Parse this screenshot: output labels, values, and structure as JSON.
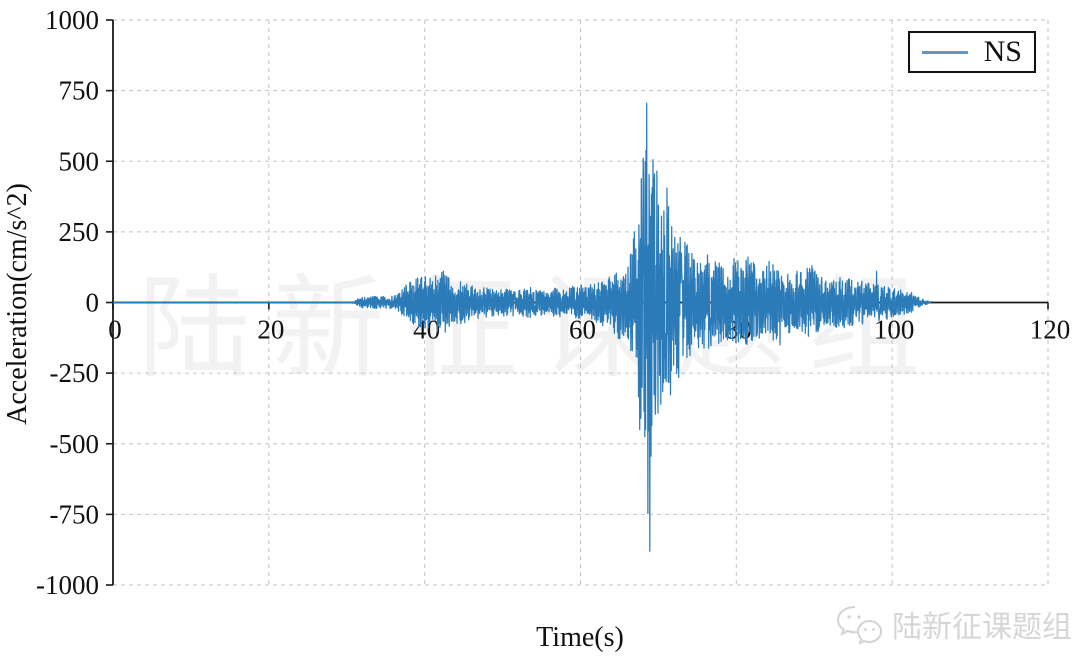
{
  "page": {
    "background": "#ffffff"
  },
  "chart_data": {
    "type": "line",
    "title": "",
    "xlabel": "Time(s)",
    "ylabel": "Acceleration(cm/s^2)",
    "xlim": [
      0,
      120
    ],
    "ylim": [
      -1000,
      1000
    ],
    "x_ticks": [
      0,
      20,
      40,
      60,
      80,
      100,
      120
    ],
    "x_tick_labels": [
      "0",
      "20",
      "40",
      "60",
      "80",
      "100",
      "120"
    ],
    "y_ticks": [
      1000,
      750,
      500,
      250,
      0,
      -250,
      -500,
      -750,
      -1000
    ],
    "y_tick_labels": [
      "1000",
      "750",
      "500",
      "250",
      "0",
      "-250",
      "-500",
      "-750",
      "-1000"
    ],
    "grid": "dashed",
    "grid_color": "#c3c3c3",
    "axis_color": "#1a1a1a",
    "legend": {
      "position": "top-right",
      "entries": [
        {
          "label": "NS",
          "color": "#5e96cb"
        }
      ]
    },
    "series": [
      {
        "name": "NS",
        "color": "#2b7bb9",
        "t_start": 0,
        "t_end": 105,
        "sample_dt": 0.05,
        "peak_positive": 705,
        "peak_positive_time": 68.5,
        "peak_negative": -880,
        "peak_negative_time": 68.9,
        "envelope_points": [
          [
            0,
            1
          ],
          [
            30.5,
            1
          ],
          [
            31,
            4
          ],
          [
            31.5,
            18
          ],
          [
            33,
            22
          ],
          [
            35,
            22
          ],
          [
            36.5,
            30
          ],
          [
            37.5,
            60
          ],
          [
            38.5,
            85
          ],
          [
            39.5,
            95
          ],
          [
            40.5,
            90
          ],
          [
            41.8,
            105
          ],
          [
            42.5,
            115
          ],
          [
            43.5,
            75
          ],
          [
            44.9,
            75
          ],
          [
            46,
            60
          ],
          [
            47.5,
            55
          ],
          [
            49,
            50
          ],
          [
            50.5,
            55
          ],
          [
            52,
            45
          ],
          [
            53.5,
            55
          ],
          [
            55,
            45
          ],
          [
            56.5,
            50
          ],
          [
            58,
            55
          ],
          [
            59.5,
            60
          ],
          [
            61,
            65
          ],
          [
            62,
            70
          ],
          [
            63,
            85
          ],
          [
            64,
            110
          ],
          [
            65,
            135
          ],
          [
            65.8,
            115
          ],
          [
            66.3,
            175
          ],
          [
            66.9,
            250
          ],
          [
            67.4,
            320
          ],
          [
            67.8,
            460
          ],
          [
            68.2,
            560
          ],
          [
            68.5,
            710
          ],
          [
            68.9,
            880
          ],
          [
            69.3,
            520
          ],
          [
            69.8,
            470
          ],
          [
            70.3,
            420
          ],
          [
            70.8,
            380
          ],
          [
            71.2,
            405
          ],
          [
            71.8,
            310
          ],
          [
            72.3,
            265
          ],
          [
            73,
            225
          ],
          [
            74,
            195
          ],
          [
            75,
            165
          ],
          [
            76.3,
            168
          ],
          [
            77.2,
            150
          ],
          [
            78.2,
            142
          ],
          [
            79.2,
            155
          ],
          [
            80.2,
            148
          ],
          [
            81.5,
            160
          ],
          [
            82.5,
            132
          ],
          [
            83.5,
            122
          ],
          [
            84.5,
            145
          ],
          [
            85.5,
            132
          ],
          [
            86.5,
            116
          ],
          [
            87.5,
            110
          ],
          [
            88.5,
            116
          ],
          [
            89.5,
            126
          ],
          [
            90.5,
            102
          ],
          [
            91.5,
            92
          ],
          [
            92.5,
            86
          ],
          [
            93.5,
            92
          ],
          [
            94.5,
            86
          ],
          [
            95.8,
            82
          ],
          [
            97,
            72
          ],
          [
            98,
            66
          ],
          [
            99,
            62
          ],
          [
            100,
            56
          ],
          [
            101,
            46
          ],
          [
            102,
            42
          ],
          [
            102.8,
            32
          ],
          [
            103.5,
            16
          ],
          [
            104.3,
            7
          ],
          [
            105,
            3
          ]
        ],
        "peak_events": [
          [
            66.9,
            250
          ],
          [
            67.6,
            -450
          ],
          [
            67.9,
            -300
          ],
          [
            68.5,
            705
          ],
          [
            68.9,
            -880
          ],
          [
            69.3,
            505
          ],
          [
            69.8,
            465
          ],
          [
            70.3,
            -360
          ],
          [
            71.1,
            405
          ],
          [
            72.1,
            230
          ],
          [
            72.6,
            -265
          ],
          [
            76.3,
            168
          ],
          [
            79.7,
            155
          ],
          [
            81.5,
            160
          ],
          [
            84.2,
            145
          ],
          [
            85.6,
            -150
          ],
          [
            89.7,
            130
          ],
          [
            98,
            110
          ]
        ]
      }
    ]
  },
  "geometry_note": "axes drawn with zero-acceleration baseline across plot",
  "watermark": {
    "text": "陆新征课题组"
  },
  "footer_logo": {
    "icon": "wechat-icon",
    "text": "陆新征课题组"
  }
}
